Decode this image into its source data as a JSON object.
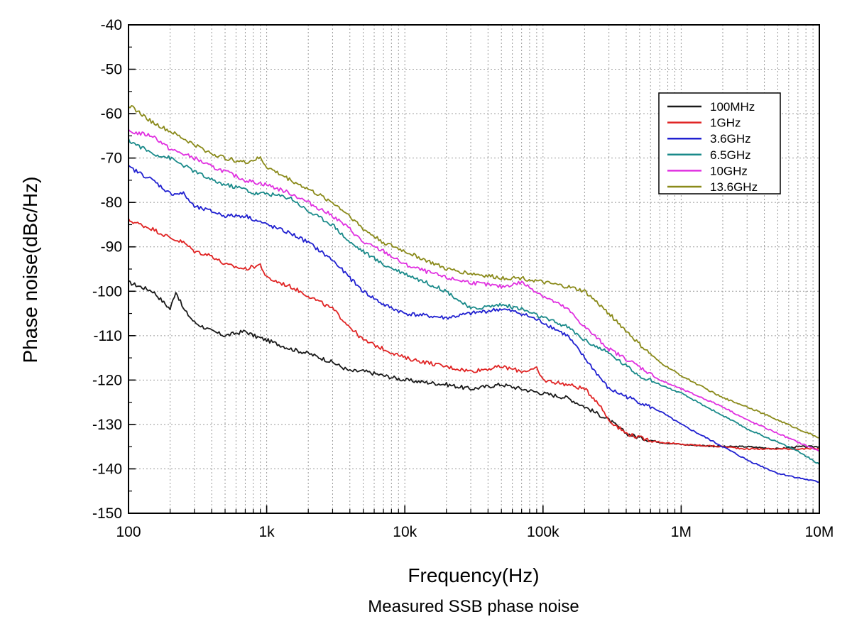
{
  "chart_data": {
    "type": "line",
    "title": "",
    "caption": "Measured SSB phase noise",
    "xlabel": "Frequency(Hz)",
    "ylabel": "Phase noise(dBc/Hz)",
    "xscale": "log",
    "xlim": [
      100,
      10000000
    ],
    "ylim": [
      -150,
      -40
    ],
    "xticks": [
      {
        "value": 100,
        "label": "100"
      },
      {
        "value": 1000,
        "label": "1k"
      },
      {
        "value": 10000,
        "label": "10k"
      },
      {
        "value": 100000,
        "label": "100k"
      },
      {
        "value": 1000000,
        "label": "1M"
      },
      {
        "value": 10000000,
        "label": "10M"
      }
    ],
    "yticks": [
      -40,
      -50,
      -60,
      -70,
      -80,
      -90,
      -100,
      -110,
      -120,
      -130,
      -140,
      -150
    ],
    "grid": true,
    "legend_position": "top-right",
    "series": [
      {
        "name": "100MHz",
        "color": "#1a1a1a",
        "x": [
          100,
          150,
          200,
          220,
          250,
          300,
          400,
          500,
          700,
          800,
          1000,
          1500,
          2000,
          3000,
          4000,
          5000,
          7000,
          10000,
          20000,
          30000,
          50000,
          70000,
          100000,
          150000,
          200000,
          300000,
          400000,
          500000,
          700000,
          1000000,
          2000000,
          3000000,
          5000000,
          7000000,
          10000000
        ],
        "y": [
          -98,
          -100,
          -104,
          -100,
          -104,
          -107,
          -109,
          -110,
          -109,
          -110,
          -111,
          -113,
          -114,
          -116,
          -118,
          -118,
          -119,
          -120,
          -121,
          -122,
          -121,
          -122,
          -123,
          -124,
          -126,
          -129,
          -132,
          -133,
          -134,
          -134.5,
          -135,
          -135,
          -135.5,
          -135,
          -135
        ]
      },
      {
        "name": "1GHz",
        "color": "#e02424",
        "x": [
          100,
          150,
          200,
          250,
          300,
          400,
          500,
          700,
          900,
          1000,
          1500,
          2000,
          3000,
          4000,
          5000,
          7000,
          10000,
          20000,
          30000,
          50000,
          70000,
          90000,
          100000,
          150000,
          200000,
          250000,
          300000,
          400000,
          500000,
          700000,
          1000000,
          2000000,
          3000000,
          5000000,
          7000000,
          10000000
        ],
        "y": [
          -84,
          -86,
          -88,
          -89,
          -91,
          -92,
          -94,
          -95,
          -94,
          -97,
          -99,
          -101,
          -104,
          -108,
          -111,
          -113,
          -115,
          -117,
          -118,
          -117,
          -118,
          -117.5,
          -120,
          -121,
          -122,
          -125,
          -129,
          -132,
          -133,
          -134,
          -134.5,
          -135,
          -135.5,
          -135.5,
          -135.5,
          -135.5
        ]
      },
      {
        "name": "3.6GHz",
        "color": "#2020d0",
        "x": [
          100,
          150,
          200,
          250,
          300,
          400,
          500,
          700,
          1000,
          1500,
          2000,
          3000,
          4000,
          5000,
          7000,
          10000,
          20000,
          30000,
          50000,
          70000,
          100000,
          150000,
          200000,
          300000,
          500000,
          700000,
          1000000,
          2000000,
          3000000,
          5000000,
          7000000,
          10000000
        ],
        "y": [
          -72,
          -75,
          -78,
          -78,
          -81,
          -82,
          -83,
          -83,
          -85,
          -87,
          -89,
          -93,
          -97,
          -100,
          -103,
          -105,
          -106,
          -105,
          -104,
          -105,
          -107,
          -110,
          -115,
          -122,
          -125,
          -127,
          -130,
          -135,
          -138,
          -141,
          -142,
          -143
        ]
      },
      {
        "name": "6.5GHz",
        "color": "#1a8a8a",
        "x": [
          100,
          150,
          200,
          300,
          400,
          500,
          700,
          800,
          1000,
          1500,
          2000,
          3000,
          4000,
          5000,
          7000,
          10000,
          20000,
          30000,
          50000,
          70000,
          100000,
          150000,
          200000,
          300000,
          500000,
          700000,
          1000000,
          2000000,
          3000000,
          5000000,
          7000000,
          10000000
        ],
        "y": [
          -66,
          -69,
          -70,
          -73,
          -75,
          -76,
          -77,
          -78,
          -78,
          -79,
          -82,
          -85,
          -89,
          -91,
          -94,
          -96,
          -100,
          -104,
          -103,
          -104,
          -106,
          -108,
          -111,
          -114,
          -119,
          -121,
          -123,
          -128,
          -131,
          -134,
          -136,
          -139
        ]
      },
      {
        "name": "10GHz",
        "color": "#e030e0",
        "x": [
          100,
          150,
          200,
          300,
          400,
          500,
          700,
          1000,
          1500,
          2000,
          3000,
          4000,
          5000,
          7000,
          10000,
          20000,
          30000,
          50000,
          70000,
          100000,
          150000,
          200000,
          300000,
          500000,
          700000,
          1000000,
          2000000,
          3000000,
          5000000,
          7000000,
          10000000
        ],
        "y": [
          -64,
          -65,
          -68,
          -70,
          -72,
          -73,
          -75,
          -76,
          -78,
          -80,
          -83,
          -86,
          -89,
          -91,
          -94,
          -97,
          -98,
          -99,
          -98,
          -101,
          -104,
          -108,
          -113,
          -117,
          -120,
          -122,
          -126,
          -129,
          -132,
          -134,
          -136
        ]
      },
      {
        "name": "13.6GHz",
        "color": "#8a8a1a",
        "x": [
          100,
          150,
          200,
          300,
          400,
          500,
          700,
          900,
          1000,
          1500,
          2000,
          3000,
          4000,
          5000,
          7000,
          10000,
          20000,
          30000,
          50000,
          70000,
          100000,
          150000,
          200000,
          300000,
          500000,
          700000,
          1000000,
          2000000,
          3000000,
          5000000,
          7000000,
          10000000
        ],
        "y": [
          -58,
          -62,
          -64,
          -67,
          -69,
          -70,
          -71,
          -70,
          -72,
          -75,
          -77,
          -80,
          -83,
          -86,
          -89,
          -91,
          -95,
          -96,
          -97,
          -97,
          -98,
          -99,
          -100,
          -105,
          -112,
          -116,
          -119,
          -124,
          -126,
          -129,
          -131,
          -133
        ]
      }
    ]
  }
}
